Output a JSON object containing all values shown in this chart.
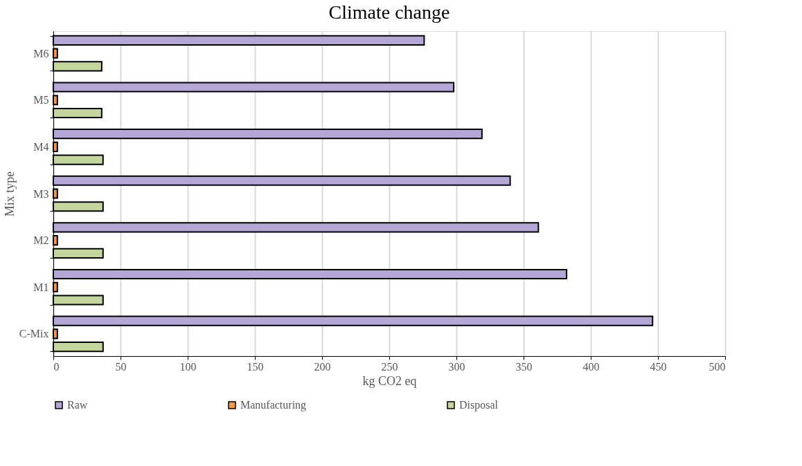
{
  "chart_data": {
    "type": "bar",
    "orientation": "horizontal",
    "title": "Climate change",
    "xlabel": "kg CO2 eq",
    "ylabel": "Mix type",
    "categories": [
      "M6",
      "M5",
      "M4",
      "M3",
      "M2",
      "M1",
      "C-Mix"
    ],
    "series": [
      {
        "name": "Raw",
        "color": "#b4a7d6",
        "values": [
          276,
          298,
          319,
          340,
          361,
          382,
          446
        ]
      },
      {
        "name": "Manufacturing",
        "color": "#f79646",
        "values": [
          3,
          3,
          3,
          3,
          3,
          3,
          3
        ]
      },
      {
        "name": "Disposal",
        "color": "#c3d69b",
        "values": [
          36,
          36,
          37,
          37,
          37,
          37,
          37
        ]
      }
    ],
    "xlim": [
      0,
      500
    ],
    "xticks": [
      0,
      50,
      100,
      150,
      200,
      250,
      300,
      350,
      400,
      450,
      500
    ],
    "grid": "x",
    "legend": "bottom"
  }
}
